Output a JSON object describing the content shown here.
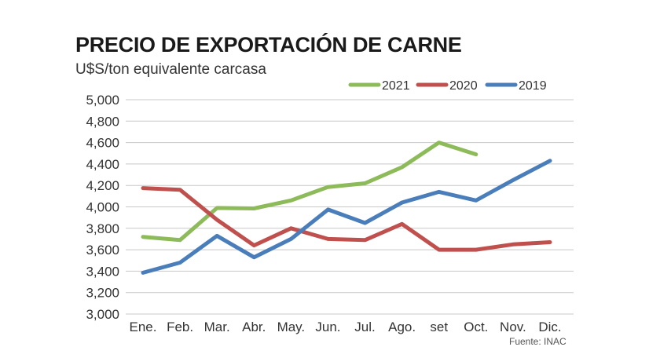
{
  "chart_data": {
    "type": "line",
    "title": "PRECIO DE EXPORTACIÓN DE CARNE",
    "subtitle": "U$S/ton equivalente carcasa",
    "source": "Fuente: INAC",
    "categories": [
      "Ene.",
      "Feb.",
      "Mar.",
      "Abr.",
      "May.",
      "Jun.",
      "Jul.",
      "Ago.",
      "set",
      "Oct.",
      "Nov.",
      "Dic."
    ],
    "ylim": [
      3000,
      5000
    ],
    "yticks": [
      3000,
      3200,
      3400,
      3600,
      3800,
      4000,
      4200,
      4400,
      4600,
      4800,
      5000
    ],
    "ytick_labels": [
      "3,000",
      "3,200",
      "3,400",
      "3,600",
      "3,800",
      "4,000",
      "4,200",
      "4,400",
      "4,600",
      "4,800",
      "5,000"
    ],
    "grid": "horizontal",
    "legend_position": "top-right",
    "series": [
      {
        "name": "2021",
        "color": "#8dbb5a",
        "values": [
          3720,
          3690,
          3990,
          3985,
          4060,
          4185,
          4220,
          4370,
          4600,
          4490,
          null,
          null
        ]
      },
      {
        "name": "2020",
        "color": "#c0504d",
        "values": [
          4175,
          4160,
          3880,
          3640,
          3800,
          3700,
          3690,
          3840,
          3600,
          3600,
          3650,
          3670
        ]
      },
      {
        "name": "2019",
        "color": "#4a7ebb",
        "values": [
          3385,
          3480,
          3730,
          3530,
          3700,
          3975,
          3850,
          4040,
          4140,
          4060,
          4250,
          4430
        ]
      }
    ]
  }
}
